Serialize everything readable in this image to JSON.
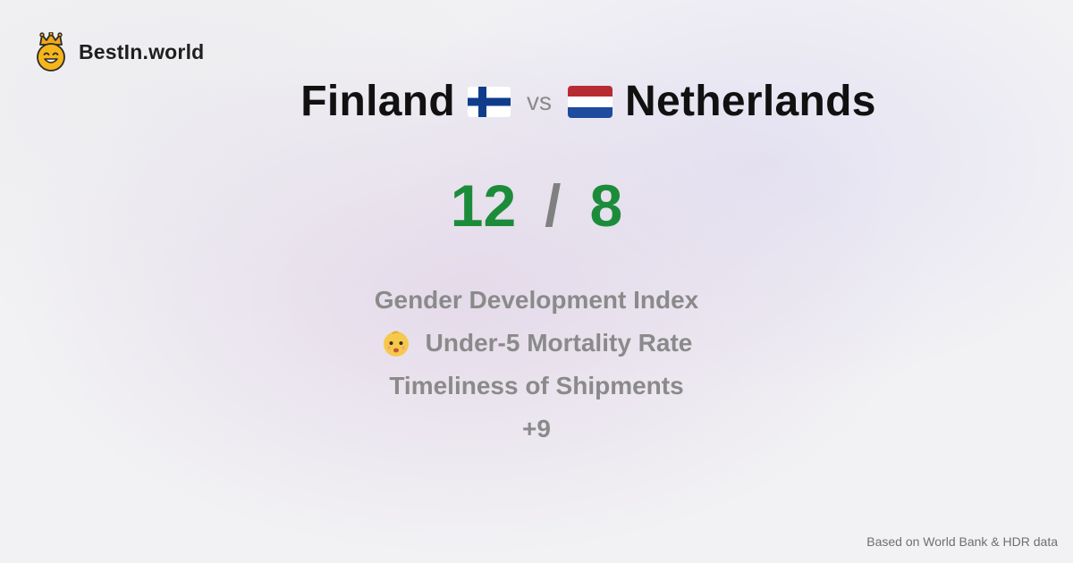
{
  "brand": {
    "name": "BestIn.world",
    "logo_icon": "crowned-smiley-icon",
    "colors": {
      "face": "#f5b51b",
      "crown": "#f0a818",
      "outline": "#2a2a2a"
    }
  },
  "comparison": {
    "left": {
      "country": "Finland",
      "flag_icon": "finland-flag-icon",
      "score": "12",
      "flag_colors": {
        "field": "#ffffff",
        "cross": "#0f3d8c"
      }
    },
    "vs_label": "vs",
    "right": {
      "country": "Netherlands",
      "flag_icon": "netherlands-flag-icon",
      "score": "8",
      "flag_colors": {
        "top": "#b72c33",
        "middle": "#ffffff",
        "bottom": "#1e4b9e"
      }
    },
    "score_separator": "/",
    "score_color": "#1c8c3a"
  },
  "metrics": [
    {
      "label": "Gender Development Index",
      "icon": null
    },
    {
      "label": "Under-5 Mortality Rate",
      "icon": "baby-face-icon"
    },
    {
      "label": "Timeliness of Shipments",
      "icon": null
    },
    {
      "label": "+9",
      "icon": null
    }
  ],
  "footer": {
    "source": "Based on World Bank & HDR data"
  }
}
